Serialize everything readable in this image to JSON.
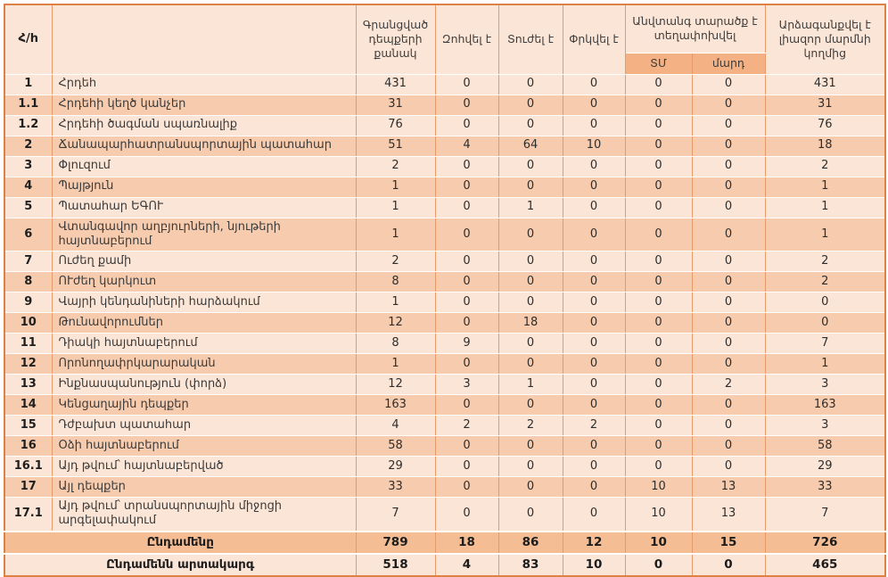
{
  "table": {
    "header": {
      "col_num": "Հ/h",
      "col_name": "",
      "col_registered": "Գրանցված դեպքերի քանակ",
      "col_died": "Զոհվել է",
      "col_injured": "Տուժել է",
      "col_rescued": "Փրկվել է",
      "col_evacuated": "Անվտանգ տարածք է տեղափոխվել",
      "col_evacuated_tm": "ՏՄ",
      "col_evacuated_people": "մարդ",
      "col_responded": "Արձագանքվել է լիազոր մարմնի կողմից"
    },
    "rows": [
      {
        "num": "1",
        "name": "Հրդեհ",
        "values": [
          "431",
          "0",
          "0",
          "0",
          "0",
          "0",
          "431"
        ]
      },
      {
        "num": "1.1",
        "name": "Հրդեհի կեղծ կանչեր",
        "values": [
          "31",
          "0",
          "0",
          "0",
          "0",
          "0",
          "31"
        ]
      },
      {
        "num": "1.2",
        "name": "Հրդեհի ծագման սպառնալիք",
        "values": [
          "76",
          "0",
          "0",
          "0",
          "0",
          "0",
          "76"
        ]
      },
      {
        "num": "2",
        "name": "Ճանապարհատրանսպորտային պատահար",
        "values": [
          "51",
          "4",
          "64",
          "10",
          "0",
          "0",
          "18"
        ]
      },
      {
        "num": "3",
        "name": "Փլուզում",
        "values": [
          "2",
          "0",
          "0",
          "0",
          "0",
          "0",
          "2"
        ]
      },
      {
        "num": "4",
        "name": "Պայթյուն",
        "values": [
          "1",
          "0",
          "0",
          "0",
          "0",
          "0",
          "1"
        ]
      },
      {
        "num": "5",
        "name": "Պատահար ԵԳՈՒ",
        "values": [
          "1",
          "0",
          "1",
          "0",
          "0",
          "0",
          "1"
        ]
      },
      {
        "num": "6",
        "name": "Վտանգավոր աղբյուրների, նյութերի հայտնաբերում",
        "values": [
          "1",
          "0",
          "0",
          "0",
          "0",
          "0",
          "1"
        ]
      },
      {
        "num": "7",
        "name": "Ուժեղ քամի",
        "values": [
          "2",
          "0",
          "0",
          "0",
          "0",
          "0",
          "2"
        ]
      },
      {
        "num": "8",
        "name": "ՈՒժեղ կարկուտ",
        "values": [
          "8",
          "0",
          "0",
          "0",
          "0",
          "0",
          "2"
        ]
      },
      {
        "num": "9",
        "name": "Վայրի կենդանիների հարձակում",
        "values": [
          "1",
          "0",
          "0",
          "0",
          "0",
          "0",
          "0"
        ]
      },
      {
        "num": "10",
        "name": "Թունավորումներ",
        "values": [
          "12",
          "0",
          "18",
          "0",
          "0",
          "0",
          "0"
        ]
      },
      {
        "num": "11",
        "name": "Դիակի հայտնաբերում",
        "values": [
          "8",
          "9",
          "0",
          "0",
          "0",
          "0",
          "7"
        ]
      },
      {
        "num": "12",
        "name": "Որոնողափրկարարական",
        "values": [
          "1",
          "0",
          "0",
          "0",
          "0",
          "0",
          "1"
        ]
      },
      {
        "num": "13",
        "name": "Ինքնասպանություն (փորձ)",
        "values": [
          "12",
          "3",
          "1",
          "0",
          "0",
          "2",
          "3"
        ]
      },
      {
        "num": "14",
        "name": "Կենցաղային դեպքեր",
        "values": [
          "163",
          "0",
          "0",
          "0",
          "0",
          "0",
          "163"
        ]
      },
      {
        "num": "15",
        "name": "Դժբախտ պատահար",
        "values": [
          "4",
          "2",
          "2",
          "2",
          "0",
          "0",
          "3"
        ]
      },
      {
        "num": "16",
        "name": "Օձի հայտնաբերում",
        "values": [
          "58",
          "0",
          "0",
          "0",
          "0",
          "0",
          "58"
        ]
      },
      {
        "num": "16.1",
        "name": "Այդ թվում՝ հայտնաբերված",
        "values": [
          "29",
          "0",
          "0",
          "0",
          "0",
          "0",
          "29"
        ]
      },
      {
        "num": "17",
        "name": "Այլ դեպքեր",
        "values": [
          "33",
          "0",
          "0",
          "0",
          "10",
          "13",
          "33"
        ]
      },
      {
        "num": "17.1",
        "name": "Այդ թվում՝ տրանսպորտային միջոցի արգելափակում",
        "values": [
          "7",
          "0",
          "0",
          "0",
          "10",
          "13",
          "7"
        ]
      }
    ],
    "totals": [
      {
        "label": "Ընդամենը",
        "values": [
          "789",
          "18",
          "86",
          "12",
          "10",
          "15",
          "726"
        ]
      },
      {
        "label": "Ընդամենն արտակարգ",
        "values": [
          "518",
          "4",
          "83",
          "10",
          "0",
          "0",
          "465"
        ]
      }
    ],
    "colors": {
      "row_light": "#fbe5d6",
      "row_dark": "#f7cbad",
      "subheader": "#f4b183",
      "total_row": "#f5bd94",
      "grid_vertical": "#e69a6a",
      "grid_horizontal": "#ffffff",
      "outer_border": "#dd8244"
    }
  }
}
